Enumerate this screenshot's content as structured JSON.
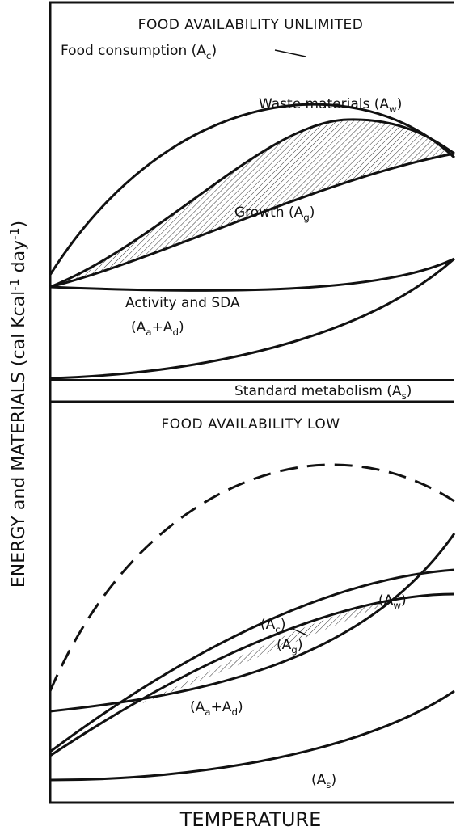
{
  "top_panel": {
    "title": "FOOD AVAILABILITY UNLIMITED",
    "labels": {
      "food_consumption": [
        "Food consumption (A",
        "c",
        ")"
      ],
      "waste": [
        "Waste materials (A",
        "w",
        ")"
      ],
      "growth": [
        "Growth (A",
        "g",
        ")"
      ],
      "activity_line1": [
        "Activity and SDA"
      ],
      "activity_line2": [
        "(A",
        "a",
        "+A",
        "d",
        ")"
      ],
      "standard": [
        "Standard metabolism (A",
        "s",
        ")"
      ]
    }
  },
  "bottom_panel": {
    "title": "FOOD AVAILABILITY LOW",
    "labels": {
      "food_consumption": [
        "(A",
        "c",
        ")"
      ],
      "waste": [
        "(A",
        "w",
        ")"
      ],
      "growth": [
        "(A",
        "g",
        ")"
      ],
      "activity": [
        "(A",
        "a",
        "+A",
        "d",
        ")"
      ],
      "standard": [
        "(A",
        "s",
        ")"
      ]
    }
  },
  "y_axis_label": [
    "ENERGY and MATERIALS (cal Kcal",
    "-1",
    " day",
    "-1",
    ")"
  ],
  "x_axis_label": "TEMPERATURE"
}
